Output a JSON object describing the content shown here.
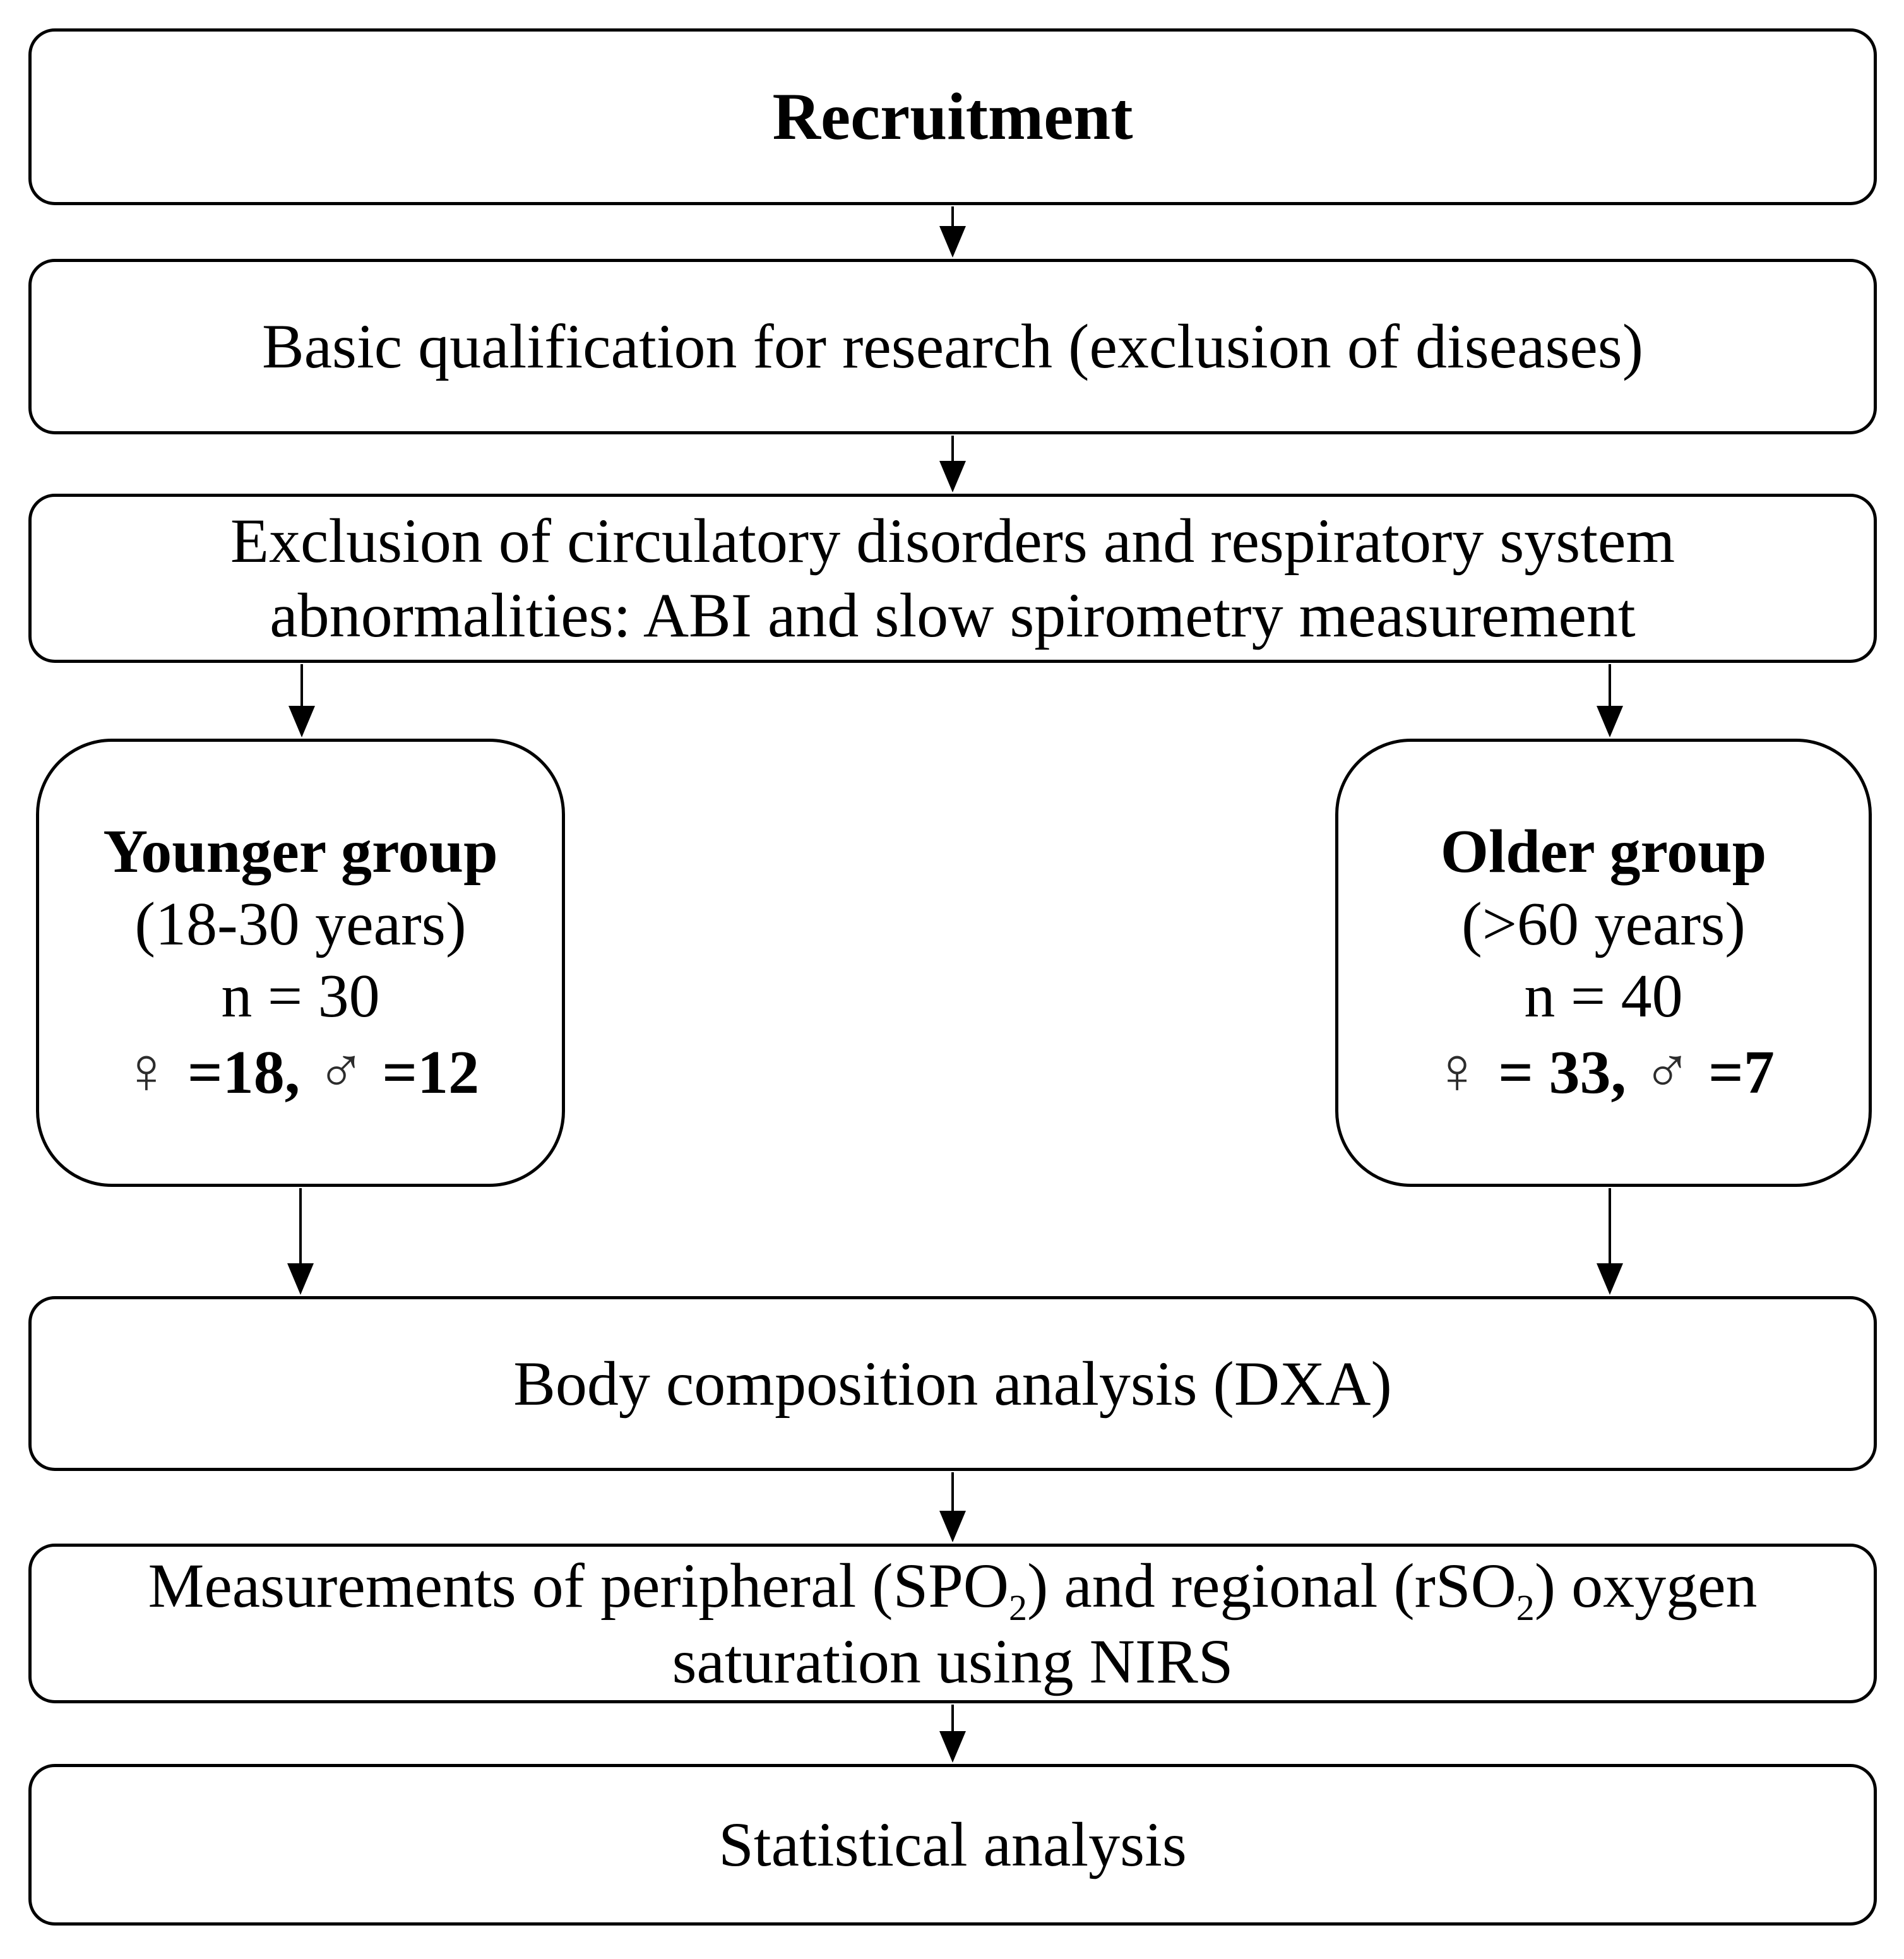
{
  "figure": {
    "background": "#ffffff",
    "border_color": "#000000",
    "text_color": "#000000"
  },
  "flowchart": {
    "recruitment": {
      "label": "Recruitment"
    },
    "basic_qualification": {
      "label": "Basic qualification for research (exclusion of diseases)"
    },
    "exclusion": {
      "lines": [
        "Exclusion of circulatory disorders and respiratory system",
        "abnormalities: ABI and slow spirometry measurement"
      ]
    },
    "younger_group": {
      "title": "Younger group",
      "age_range": "(18-30 years)",
      "sample_size": "n = 30",
      "female_symbol": "♀",
      "female_count": "=18,",
      "male_symbol": "♂",
      "male_count": "=12"
    },
    "older_group": {
      "title": "Older group",
      "age_range": "(>60 years)",
      "sample_size": "n = 40",
      "female_symbol": "♀",
      "female_count": "= 33,",
      "male_symbol": "♂",
      "male_count": "=7"
    },
    "body_composition": {
      "label": "Body composition analysis (DXA)"
    },
    "measurements": {
      "line1_pre": "Measurements of peripheral (SPO",
      "line1_sub1": "2",
      "line1_mid": ") and regional (rSO",
      "line1_sub2": "2",
      "line1_post": ") oxygen",
      "line2": "saturation using NIRS"
    },
    "statistical": {
      "label": "Statistical analysis"
    }
  }
}
